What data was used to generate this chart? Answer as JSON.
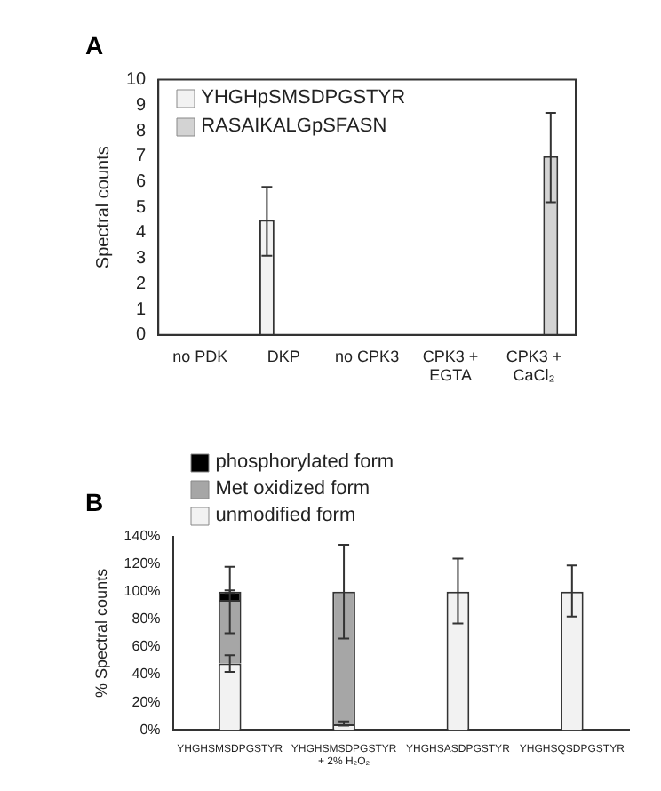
{
  "chart_data": [
    {
      "type": "bar",
      "title": "A",
      "ylabel": "Spectral counts",
      "categories": [
        "no PDK",
        "DKP",
        "no CPK3",
        "CPK3 +\nEGTA",
        "CPK3 +\nCaCl₂"
      ],
      "ylim": [
        0,
        10
      ],
      "yticks": [
        0,
        1,
        2,
        3,
        4,
        5,
        6,
        7,
        8,
        9,
        10
      ],
      "grid": false,
      "legend": "top left",
      "series": [
        {
          "name": "YHGHpSMSDPGSTYR",
          "color": "#f2f2f2",
          "values": [
            null,
            4.5,
            null,
            null,
            null
          ],
          "errors": [
            null,
            [
              3.1,
              5.8
            ],
            null,
            null,
            null
          ]
        },
        {
          "name": "RASAIKALGpSFASN",
          "color": "#d3d3d3",
          "values": [
            null,
            null,
            null,
            null,
            7
          ],
          "errors": [
            null,
            null,
            null,
            null,
            [
              5.2,
              8.7
            ]
          ]
        }
      ]
    },
    {
      "type": "bar",
      "title": "B",
      "ylabel": "% Spectral counts",
      "categories": [
        "YHGHSMSDPGSTYR",
        "YHGHSMSDPGSTYR\n+ 2% H₂O₂",
        "YHGHSASDPGSTYR",
        "YHGHSQSDPGSTYR"
      ],
      "stacked": true,
      "ylim": [
        0,
        140
      ],
      "yticks": [
        {
          "value": 0,
          "label": "0%"
        },
        {
          "value": 20,
          "label": "20%"
        },
        {
          "value": 40,
          "label": "40%"
        },
        {
          "value": 60,
          "label": "60%"
        },
        {
          "value": 80,
          "label": "80%"
        },
        {
          "value": 100,
          "label": "100%"
        },
        {
          "value": 120,
          "label": "120%"
        },
        {
          "value": 140,
          "label": "140%"
        }
      ],
      "grid": false,
      "legend": "top left",
      "series": [
        {
          "name": "unmodified form",
          "color": "#f2f2f2",
          "values": [
            48,
            4,
            100,
            100
          ],
          "errors": [
            [
              42,
              54
            ],
            [
              3,
              6
            ],
            [
              77,
              124
            ],
            [
              82,
              119
            ]
          ]
        },
        {
          "name": "Met oxidized form",
          "color": "#a6a6a6",
          "values": [
            46,
            96,
            null,
            null
          ],
          "errors": [
            [
              70,
              118
            ],
            [
              66,
              134
            ],
            null,
            null
          ]
        },
        {
          "name": "phosphorylated form",
          "color": "#000000",
          "values": [
            6,
            null,
            null,
            null
          ],
          "errors": [
            [
              99,
              101
            ],
            null,
            null,
            null
          ]
        }
      ]
    }
  ]
}
